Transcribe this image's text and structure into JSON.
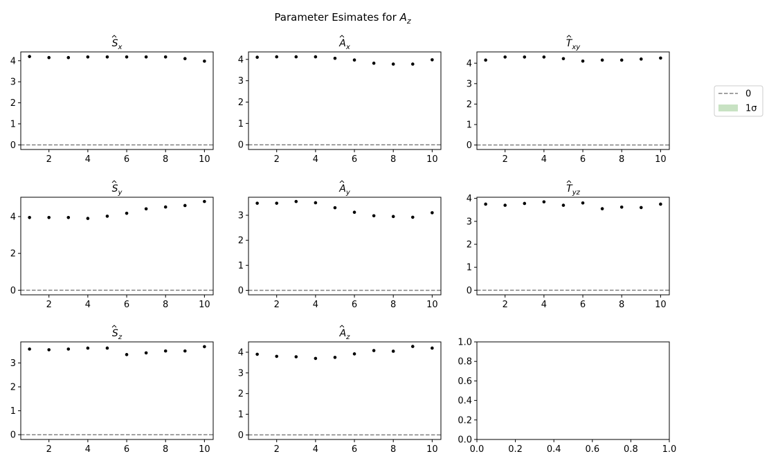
{
  "figure_title": {
    "prefix": "Parameter Esimates for ",
    "symbol": "A",
    "sub": "z"
  },
  "legend": {
    "items": [
      {
        "label": "0",
        "kind": "dashed-line",
        "color": "#808080"
      },
      {
        "label": "1σ",
        "kind": "patch",
        "color": "#c8e2c3"
      }
    ]
  },
  "colors": {
    "marker": "#000000",
    "zero_line": "#808080",
    "axes": "#000000"
  },
  "chart_data": [
    {
      "type": "scatter",
      "title": {
        "sym": "S",
        "sub": "x"
      },
      "x": [
        1,
        2,
        3,
        4,
        5,
        6,
        7,
        8,
        9,
        10
      ],
      "y": [
        4.2,
        4.15,
        4.15,
        4.18,
        4.18,
        4.18,
        4.18,
        4.18,
        4.1,
        3.98
      ],
      "xlim": [
        0.55,
        10.45
      ],
      "ylim": [
        -0.22,
        4.42
      ],
      "yticks": [
        0,
        1,
        2,
        3,
        4
      ],
      "xticks": [
        2,
        4,
        6,
        8,
        10
      ]
    },
    {
      "type": "scatter",
      "title": {
        "sym": "A",
        "sub": "x"
      },
      "x": [
        1,
        2,
        3,
        4,
        5,
        6,
        7,
        8,
        9,
        10
      ],
      "y": [
        4.1,
        4.12,
        4.12,
        4.12,
        4.05,
        3.97,
        3.82,
        3.78,
        3.78,
        3.98
      ],
      "xlim": [
        0.55,
        10.45
      ],
      "ylim": [
        -0.22,
        4.35
      ],
      "yticks": [
        0,
        1,
        2,
        3,
        4
      ],
      "xticks": [
        2,
        4,
        6,
        8,
        10
      ]
    },
    {
      "type": "scatter",
      "title": {
        "sym": "T",
        "sub": "xy"
      },
      "x": [
        1,
        2,
        3,
        4,
        5,
        6,
        7,
        8,
        9,
        10
      ],
      "y": [
        4.15,
        4.3,
        4.3,
        4.3,
        4.22,
        4.1,
        4.15,
        4.15,
        4.2,
        4.25
      ],
      "xlim": [
        0.55,
        10.45
      ],
      "ylim": [
        -0.22,
        4.55
      ],
      "yticks": [
        0,
        1,
        2,
        3,
        4
      ],
      "xticks": [
        2,
        4,
        6,
        8,
        10
      ]
    },
    {
      "type": "scatter",
      "title": {
        "sym": "S",
        "sub": "y"
      },
      "x": [
        1,
        2,
        3,
        4,
        5,
        6,
        7,
        8,
        9,
        10
      ],
      "y": [
        3.95,
        3.95,
        3.95,
        3.9,
        4.02,
        4.18,
        4.42,
        4.52,
        4.6,
        4.82
      ],
      "xlim": [
        0.55,
        10.45
      ],
      "ylim": [
        -0.25,
        5.05
      ],
      "yticks": [
        0,
        2,
        4
      ],
      "xticks": [
        2,
        4,
        6,
        8,
        10
      ]
    },
    {
      "type": "scatter",
      "title": {
        "sym": "A",
        "sub": "y"
      },
      "x": [
        1,
        2,
        3,
        4,
        5,
        6,
        7,
        8,
        9,
        10
      ],
      "y": [
        3.48,
        3.48,
        3.55,
        3.5,
        3.3,
        3.12,
        2.98,
        2.95,
        2.92,
        3.1
      ],
      "xlim": [
        0.55,
        10.45
      ],
      "ylim": [
        -0.18,
        3.72
      ],
      "yticks": [
        0,
        1,
        2,
        3
      ],
      "xticks": [
        2,
        4,
        6,
        8,
        10
      ]
    },
    {
      "type": "scatter",
      "title": {
        "sym": "T",
        "sub": "yz"
      },
      "x": [
        1,
        2,
        3,
        4,
        5,
        6,
        7,
        8,
        9,
        10
      ],
      "y": [
        3.75,
        3.7,
        3.78,
        3.85,
        3.7,
        3.8,
        3.55,
        3.62,
        3.6,
        3.75
      ],
      "xlim": [
        0.55,
        10.45
      ],
      "ylim": [
        -0.2,
        4.05
      ],
      "yticks": [
        0,
        1,
        2,
        3,
        4
      ],
      "xticks": [
        2,
        4,
        6,
        8,
        10
      ]
    },
    {
      "type": "scatter",
      "title": {
        "sym": "S",
        "sub": "z"
      },
      "x": [
        1,
        2,
        3,
        4,
        5,
        6,
        7,
        8,
        9,
        10
      ],
      "y": [
        3.58,
        3.55,
        3.58,
        3.62,
        3.62,
        3.35,
        3.42,
        3.5,
        3.5,
        3.68
      ],
      "xlim": [
        0.55,
        10.45
      ],
      "ylim": [
        -0.2,
        3.88
      ],
      "yticks": [
        0,
        1,
        2,
        3
      ],
      "xticks": [
        2,
        4,
        6,
        8,
        10
      ]
    },
    {
      "type": "scatter",
      "title": {
        "sym": "A",
        "sub": "z"
      },
      "x": [
        1,
        2,
        3,
        4,
        5,
        6,
        7,
        8,
        9,
        10
      ],
      "y": [
        3.9,
        3.8,
        3.78,
        3.7,
        3.75,
        3.92,
        4.08,
        4.05,
        4.28,
        4.2
      ],
      "xlim": [
        0.55,
        10.45
      ],
      "ylim": [
        -0.22,
        4.5
      ],
      "yticks": [
        0,
        1,
        2,
        3,
        4
      ],
      "xticks": [
        2,
        4,
        6,
        8,
        10
      ]
    },
    {
      "type": "scatter",
      "title": {
        "sym": "",
        "sub": ""
      },
      "x": [],
      "y": [],
      "xlim": [
        0,
        1
      ],
      "ylim": [
        0,
        1
      ],
      "yticks": [
        "0.0",
        "0.2",
        "0.4",
        "0.6",
        "0.8",
        "1.0"
      ],
      "xticks": [
        "0.0",
        "0.2",
        "0.4",
        "0.6",
        "0.8",
        "1.0"
      ],
      "empty": true
    }
  ]
}
